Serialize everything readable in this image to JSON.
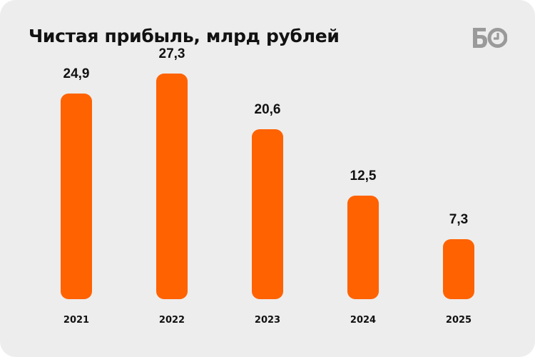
{
  "header": {
    "title": "Чистая прибыль, млрд рублей",
    "logo_text": "БО",
    "logo_icon": "clock-icon"
  },
  "colors": {
    "bar": "#ff6200",
    "background": "#ededed",
    "text": "#111111",
    "logo": "#9a9a9a"
  },
  "chart_data": {
    "type": "bar",
    "title": "Чистая прибыль, млрд рублей",
    "categories": [
      "2021",
      "2022",
      "2023",
      "2024",
      "2025"
    ],
    "values": [
      24.9,
      27.3,
      20.6,
      12.5,
      7.3
    ],
    "value_labels": [
      "24,9",
      "27,3",
      "20,6",
      "12,5",
      "7,3"
    ],
    "xlabel": "",
    "ylabel": "млрд рублей",
    "ylim": [
      0,
      27.3
    ],
    "grid": false,
    "legend": "none"
  }
}
